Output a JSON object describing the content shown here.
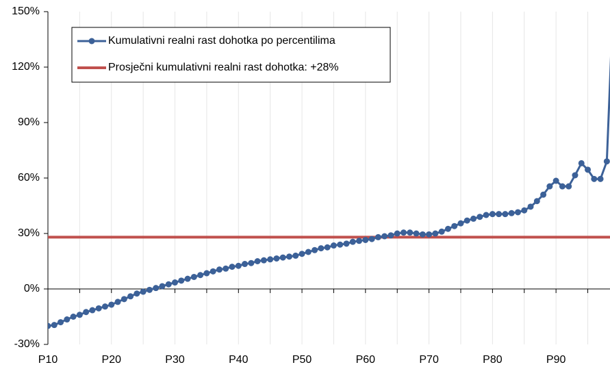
{
  "chart_data": {
    "type": "line",
    "x": [
      10,
      11,
      12,
      13,
      14,
      15,
      16,
      17,
      18,
      19,
      20,
      21,
      22,
      23,
      24,
      25,
      26,
      27,
      28,
      29,
      30,
      31,
      32,
      33,
      34,
      35,
      36,
      37,
      38,
      39,
      40,
      41,
      42,
      43,
      44,
      45,
      46,
      47,
      48,
      49,
      50,
      51,
      52,
      53,
      54,
      55,
      56,
      57,
      58,
      59,
      60,
      61,
      62,
      63,
      64,
      65,
      66,
      67,
      68,
      69,
      70,
      71,
      72,
      73,
      74,
      75,
      76,
      77,
      78,
      79,
      80,
      81,
      82,
      83,
      84,
      85,
      86,
      87,
      88,
      89,
      90,
      91,
      92,
      93,
      94,
      95,
      96,
      97,
      98,
      99
    ],
    "series": [
      {
        "name": "Kumulativni realni rast dohotka po percentilima",
        "color": "#3c6198",
        "values": [
          -20,
          -19.5,
          -18,
          -16.5,
          -15,
          -14,
          -12.5,
          -11.5,
          -10.5,
          -9.5,
          -8.5,
          -7,
          -5.5,
          -4,
          -2.5,
          -1.5,
          -0.5,
          0.5,
          1.5,
          2.5,
          3.5,
          4.5,
          5.5,
          6.5,
          7.5,
          8.5,
          9.5,
          10.5,
          11,
          12,
          12.5,
          13.5,
          14,
          15,
          15.5,
          16,
          16.5,
          17,
          17.5,
          18,
          19,
          20,
          21,
          22,
          22.5,
          23.5,
          24,
          24.5,
          25.5,
          26,
          26.5,
          27,
          28,
          28.5,
          29,
          30,
          30.5,
          30.5,
          30,
          29.5,
          29.5,
          30,
          31,
          32.5,
          34,
          35.5,
          37,
          38,
          39,
          40,
          40.5,
          40.5,
          40.5,
          41,
          41.5,
          42.5,
          44.5,
          47.5,
          51,
          55.5,
          58.5,
          55.5,
          55.5,
          61.5,
          68,
          64.5,
          59.5,
          59.5,
          69,
          155
        ]
      }
    ],
    "reference": {
      "name": "Prosječni kumulativni realni rast dohotka: +28%",
      "value": 28,
      "color": "#c0504d"
    },
    "xlim": [
      10,
      98.5
    ],
    "xticks": [
      {
        "value": 10,
        "label": "P10"
      },
      {
        "value": 20,
        "label": "P20"
      },
      {
        "value": 30,
        "label": "P30"
      },
      {
        "value": 40,
        "label": "P40"
      },
      {
        "value": 50,
        "label": "P50"
      },
      {
        "value": 60,
        "label": "P60"
      },
      {
        "value": 70,
        "label": "P70"
      },
      {
        "value": 80,
        "label": "P80"
      },
      {
        "value": 90,
        "label": "P90"
      }
    ],
    "xminorticks": [
      15,
      25,
      35,
      45,
      55,
      65,
      75,
      85,
      95
    ],
    "ylim": [
      -30,
      150
    ],
    "yticks": [
      {
        "value": -30,
        "label": "-30%"
      },
      {
        "value": 0,
        "label": "0%"
      },
      {
        "value": 30,
        "label": "30%"
      },
      {
        "value": 60,
        "label": "60%"
      },
      {
        "value": 90,
        "label": "90%"
      },
      {
        "value": 120,
        "label": "120%"
      },
      {
        "value": 150,
        "label": "150%"
      }
    ],
    "grid": true,
    "legend": "upper left"
  }
}
